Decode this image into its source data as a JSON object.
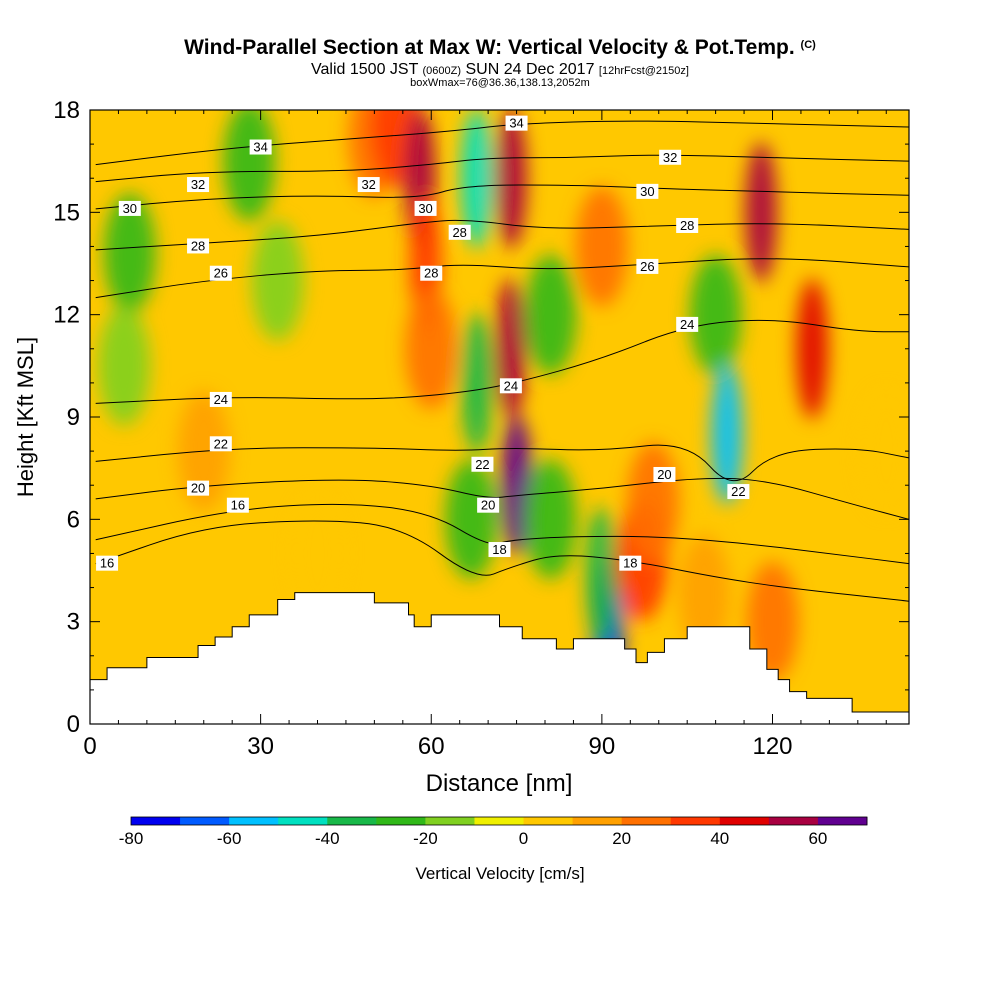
{
  "header": {
    "title": "Wind-Parallel Section at Max W: Vertical Velocity & Pot.Temp.",
    "copyright": "(C)",
    "valid_prefix": "Valid 1500 JST",
    "valid_utc": "(0600Z)",
    "valid_date": "SUN 24 Dec 2017",
    "forecast": "[12hrFcst@2150z]",
    "box_info": "boxWmax=76@36.36,138.13,2052m"
  },
  "chart_data": {
    "type": "heatmap",
    "description_free": true,
    "xlabel": "Distance [nm]",
    "ylabel": "Height [Kft MSL]",
    "xlim": [
      0,
      144
    ],
    "ylim": [
      0,
      18
    ],
    "x_ticks": [
      0,
      30,
      60,
      90,
      120
    ],
    "y_ticks": [
      0,
      3,
      6,
      9,
      12,
      15,
      18
    ],
    "colorbar": {
      "label": "Vertical Velocity [cm/s]",
      "levels": [
        -80,
        -70,
        -60,
        -50,
        -40,
        -30,
        -20,
        -10,
        0,
        10,
        20,
        30,
        40,
        50,
        60,
        70
      ],
      "tick_labels": [
        "-80",
        "-60",
        "-40",
        "-20",
        "0",
        "20",
        "40",
        "60"
      ],
      "colors": [
        "#0000f0",
        "#005aff",
        "#00c0ff",
        "#00e0c0",
        "#18b848",
        "#30b818",
        "#80d020",
        "#f0f000",
        "#ffc800",
        "#ffa000",
        "#ff7000",
        "#ff3800",
        "#e00000",
        "#a80040",
        "#600090"
      ]
    },
    "terrain": [
      [
        0,
        1.3
      ],
      [
        3,
        1.65
      ],
      [
        10,
        1.95
      ],
      [
        19,
        2.3
      ],
      [
        22,
        2.55
      ],
      [
        25,
        2.85
      ],
      [
        28,
        3.2
      ],
      [
        33,
        3.65
      ],
      [
        36,
        3.85
      ],
      [
        47,
        3.85
      ],
      [
        50,
        3.55
      ],
      [
        56,
        3.2
      ],
      [
        57,
        2.85
      ],
      [
        60,
        3.2
      ],
      [
        63,
        3.2
      ],
      [
        65,
        3.2
      ],
      [
        70,
        3.2
      ],
      [
        72,
        2.85
      ],
      [
        76,
        2.5
      ],
      [
        78,
        2.5
      ],
      [
        82,
        2.2
      ],
      [
        85,
        2.5
      ],
      [
        89,
        2.5
      ],
      [
        94,
        2.2
      ],
      [
        96,
        1.8
      ],
      [
        98,
        2.1
      ],
      [
        101,
        2.5
      ],
      [
        105,
        2.85
      ],
      [
        113,
        2.85
      ],
      [
        116,
        2.2
      ],
      [
        119,
        1.6
      ],
      [
        121,
        1.3
      ],
      [
        123,
        0.95
      ],
      [
        126,
        0.75
      ],
      [
        129,
        0.75
      ],
      [
        134,
        0.35
      ],
      [
        144,
        0.35
      ]
    ],
    "w_field": [
      {
        "x": 7,
        "y": 13.8,
        "w": -30
      },
      {
        "x": 6,
        "y": 10.5,
        "w": -20
      },
      {
        "x": 28,
        "y": 16.5,
        "w": -25
      },
      {
        "x": 33,
        "y": 13,
        "w": -15
      },
      {
        "x": 50,
        "y": 17.2,
        "w": 25
      },
      {
        "x": 54,
        "y": 17.5,
        "w": 30
      },
      {
        "x": 58,
        "y": 16,
        "w": 50
      },
      {
        "x": 59,
        "y": 13.5,
        "w": 35
      },
      {
        "x": 60,
        "y": 11,
        "w": 20
      },
      {
        "x": 68,
        "y": 16,
        "w": -50
      },
      {
        "x": 68,
        "y": 10,
        "w": -40
      },
      {
        "x": 67,
        "y": 6,
        "w": -30
      },
      {
        "x": 74,
        "y": 16,
        "w": 50
      },
      {
        "x": 74,
        "y": 11,
        "w": 55
      },
      {
        "x": 75,
        "y": 7,
        "w": 60
      },
      {
        "x": 81,
        "y": 12,
        "w": -30
      },
      {
        "x": 81,
        "y": 6,
        "w": -25
      },
      {
        "x": 91,
        "y": 2.8,
        "w": -75
      },
      {
        "x": 90,
        "y": 4.3,
        "w": -40
      },
      {
        "x": 90,
        "y": 14,
        "w": 25
      },
      {
        "x": 97,
        "y": 4.8,
        "w": 30
      },
      {
        "x": 99,
        "y": 6.5,
        "w": 20
      },
      {
        "x": 108,
        "y": 3.8,
        "w": 15
      },
      {
        "x": 110,
        "y": 12,
        "w": -30
      },
      {
        "x": 112,
        "y": 8.5,
        "w": -55
      },
      {
        "x": 118,
        "y": 15,
        "w": 50
      },
      {
        "x": 127,
        "y": 11,
        "w": 40
      },
      {
        "x": 120,
        "y": 3,
        "w": 20
      },
      {
        "x": 40,
        "y": 5,
        "w": 3
      },
      {
        "x": 20,
        "y": 8,
        "w": 10
      },
      {
        "x": 140,
        "y": 8,
        "w": 8
      }
    ],
    "theta_contours": [
      {
        "value": 16,
        "pts": [
          [
            1,
            4.7
          ],
          [
            20,
            5.8
          ],
          [
            40,
            6
          ],
          [
            55,
            5.8
          ],
          [
            68,
            4.2
          ],
          [
            74,
            4.6
          ],
          [
            82,
            5
          ],
          [
            95,
            4.8
          ],
          [
            110,
            4.3
          ],
          [
            122,
            4
          ],
          [
            144,
            3.6
          ]
        ]
      },
      {
        "value": 18,
        "pts": [
          [
            1,
            5.4
          ],
          [
            25,
            6.3
          ],
          [
            45,
            6.5
          ],
          [
            60,
            6.2
          ],
          [
            70,
            5.2
          ],
          [
            74,
            5.4
          ],
          [
            85,
            5.5
          ],
          [
            100,
            5.5
          ],
          [
            115,
            5.3
          ],
          [
            130,
            5
          ],
          [
            144,
            4.7
          ]
        ]
      },
      {
        "value": 20,
        "pts": [
          [
            1,
            6.6
          ],
          [
            20,
            7
          ],
          [
            45,
            7.2
          ],
          [
            60,
            7
          ],
          [
            70,
            6.6
          ],
          [
            75,
            6.7
          ],
          [
            90,
            6.9
          ],
          [
            105,
            7.2
          ],
          [
            118,
            7.2
          ],
          [
            135,
            6.4
          ],
          [
            144,
            6
          ]
        ]
      },
      {
        "value": 22,
        "pts": [
          [
            1,
            7.7
          ],
          [
            25,
            8.1
          ],
          [
            50,
            8.1
          ],
          [
            65,
            8
          ],
          [
            74,
            8.1
          ],
          [
            90,
            8
          ],
          [
            105,
            8.3
          ],
          [
            113,
            6.8
          ],
          [
            120,
            8
          ],
          [
            135,
            8.1
          ],
          [
            144,
            7.8
          ]
        ]
      },
      {
        "value": 24,
        "pts": [
          [
            1,
            9.4
          ],
          [
            25,
            9.6
          ],
          [
            50,
            9.5
          ],
          [
            65,
            9.7
          ],
          [
            75,
            10
          ],
          [
            90,
            10.7
          ],
          [
            105,
            11.7
          ],
          [
            120,
            11.9
          ],
          [
            135,
            11.5
          ],
          [
            144,
            11.5
          ]
        ]
      },
      {
        "value": 26,
        "pts": [
          [
            1,
            12.5
          ],
          [
            20,
            13
          ],
          [
            40,
            13.3
          ],
          [
            55,
            13.3
          ],
          [
            65,
            13.5
          ],
          [
            80,
            13.3
          ],
          [
            100,
            13.5
          ],
          [
            120,
            13.7
          ],
          [
            144,
            13.4
          ]
        ]
      },
      {
        "value": 28,
        "pts": [
          [
            1,
            13.9
          ],
          [
            20,
            14.1
          ],
          [
            40,
            14.3
          ],
          [
            58,
            14.7
          ],
          [
            66,
            14.8
          ],
          [
            80,
            14.5
          ],
          [
            100,
            14.6
          ],
          [
            120,
            14.7
          ],
          [
            144,
            14.5
          ]
        ]
      },
      {
        "value": 30,
        "pts": [
          [
            1,
            15.1
          ],
          [
            20,
            15.4
          ],
          [
            40,
            15.5
          ],
          [
            58,
            15.4
          ],
          [
            66,
            15.8
          ],
          [
            85,
            15.8
          ],
          [
            100,
            15.7
          ],
          [
            120,
            15.6
          ],
          [
            144,
            15.5
          ]
        ]
      },
      {
        "value": 32,
        "pts": [
          [
            1,
            15.9
          ],
          [
            20,
            16.2
          ],
          [
            45,
            16.2
          ],
          [
            60,
            16.4
          ],
          [
            70,
            16.6
          ],
          [
            85,
            16.6
          ],
          [
            100,
            16.7
          ],
          [
            120,
            16.6
          ],
          [
            144,
            16.5
          ]
        ]
      },
      {
        "value": 34,
        "pts": [
          [
            1,
            16.4
          ],
          [
            25,
            16.9
          ],
          [
            50,
            17.2
          ],
          [
            65,
            17.4
          ],
          [
            75,
            17.6
          ],
          [
            95,
            17.7
          ],
          [
            120,
            17.6
          ],
          [
            144,
            17.5
          ]
        ]
      }
    ],
    "contour_labels": [
      {
        "text": "34",
        "x": 30,
        "y": 16.9
      },
      {
        "text": "32",
        "x": 19,
        "y": 15.8
      },
      {
        "text": "30",
        "x": 7,
        "y": 15.1
      },
      {
        "text": "28",
        "x": 19,
        "y": 14
      },
      {
        "text": "26",
        "x": 23,
        "y": 13.2
      },
      {
        "text": "24",
        "x": 23,
        "y": 9.5
      },
      {
        "text": "22",
        "x": 23,
        "y": 8.2
      },
      {
        "text": "20",
        "x": 19,
        "y": 6.9
      },
      {
        "text": "16",
        "x": 26,
        "y": 6.4
      },
      {
        "text": "16",
        "x": 3,
        "y": 4.7
      },
      {
        "text": "32",
        "x": 49,
        "y": 15.8
      },
      {
        "text": "30",
        "x": 59,
        "y": 15.1
      },
      {
        "text": "28",
        "x": 65,
        "y": 14.4
      },
      {
        "text": "28",
        "x": 60,
        "y": 13.2
      },
      {
        "text": "34",
        "x": 75,
        "y": 17.6
      },
      {
        "text": "24",
        "x": 74,
        "y": 9.9
      },
      {
        "text": "22",
        "x": 69,
        "y": 7.6
      },
      {
        "text": "20",
        "x": 70,
        "y": 6.4
      },
      {
        "text": "18",
        "x": 72,
        "y": 5.1
      },
      {
        "text": "32",
        "x": 102,
        "y": 16.6
      },
      {
        "text": "30",
        "x": 98,
        "y": 15.6
      },
      {
        "text": "28",
        "x": 105,
        "y": 14.6
      },
      {
        "text": "26",
        "x": 98,
        "y": 13.4
      },
      {
        "text": "24",
        "x": 105,
        "y": 11.7
      },
      {
        "text": "20",
        "x": 101,
        "y": 7.3
      },
      {
        "text": "18",
        "x": 95,
        "y": 4.7
      },
      {
        "text": "22",
        "x": 114,
        "y": 6.8
      }
    ]
  }
}
